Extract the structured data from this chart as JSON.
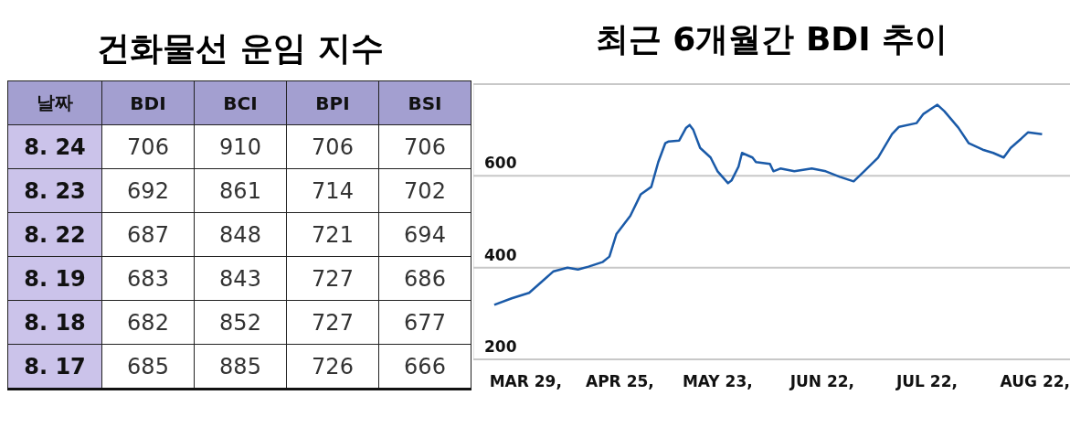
{
  "chart_data": [
    {
      "type": "other",
      "title": "건화물선 운임 지수",
      "xlabel": "날짜",
      "categories": [
        "8. 24",
        "8. 23",
        "8. 22",
        "8. 19",
        "8. 18",
        "8. 17"
      ],
      "data_labels": true,
      "series": [
        {
          "name": "BDI",
          "values": [
            706,
            692,
            687,
            683,
            682,
            685
          ]
        },
        {
          "name": "BCI",
          "values": [
            910,
            861,
            848,
            843,
            852,
            885
          ]
        },
        {
          "name": "BPI",
          "values": [
            706,
            714,
            721,
            727,
            727,
            726
          ]
        },
        {
          "name": "BSI",
          "values": [
            706,
            702,
            694,
            686,
            677,
            666
          ]
        }
      ]
    },
    {
      "type": "line",
      "title": "최근 6개월간 BDI 추이",
      "grid": "y",
      "legend": false,
      "marker": "none",
      "line_style": "solid",
      "xlim": [
        "--03-14",
        "--09-01"
      ],
      "ylim": [
        200,
        800
      ],
      "xticks": [
        {
          "value": "--03-29",
          "label": "MAR 29,"
        },
        {
          "value": "--04-25",
          "label": "APR 25,"
        },
        {
          "value": "--05-23",
          "label": "MAY 23,"
        },
        {
          "value": "--06-22",
          "label": "JUN 22,"
        },
        {
          "value": "--07-22",
          "label": "JUL 22,"
        },
        {
          "value": "--08-22",
          "label": "AUG 22,"
        }
      ],
      "yticks": [
        200,
        400,
        600
      ],
      "x": [
        "--03-20",
        "--03-25",
        "--03-30",
        "--04-03",
        "--04-06",
        "--04-10",
        "--04-13",
        "--04-16",
        "--04-20",
        "--04-22",
        "--04-24",
        "--04-28",
        "--05-01",
        "--05-04",
        "--05-06",
        "--05-08",
        "--05-09",
        "--05-12",
        "--05-14",
        "--05-15",
        "--05-16",
        "--05-18",
        "--05-21",
        "--05-23",
        "--05-26",
        "--05-27",
        "--05-29",
        "--05-30",
        "--06-02",
        "--06-03",
        "--06-07",
        "--06-08",
        "--06-10",
        "--06-14",
        "--06-19",
        "--06-23",
        "--06-27",
        "--07-01",
        "--07-04",
        "--07-08",
        "--07-12",
        "--07-14",
        "--07-19",
        "--07-21",
        "--07-25",
        "--07-27",
        "--07-31",
        "--08-03",
        "--08-07",
        "--08-10",
        "--08-13",
        "--08-15",
        "--08-18",
        "--08-20",
        "--08-24"
      ],
      "series": [
        {
          "color": "#1a5aa8",
          "values": [
            319,
            333,
            345,
            372,
            392,
            400,
            396,
            402,
            412,
            424,
            473,
            513,
            560,
            576,
            630,
            671,
            675,
            677,
            705,
            711,
            701,
            661,
            640,
            610,
            584,
            590,
            620,
            650,
            640,
            630,
            626,
            610,
            616,
            610,
            616,
            610,
            598,
            588,
            610,
            640,
            691,
            707,
            715,
            735,
            755,
            741,
            705,
            671,
            657,
            650,
            640,
            661,
            681,
            695,
            691
          ]
        }
      ]
    }
  ]
}
